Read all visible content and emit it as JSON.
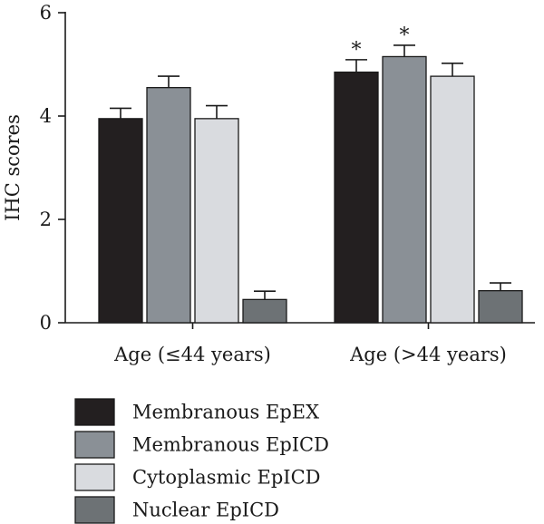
{
  "chart_data": {
    "type": "bar",
    "title": "",
    "xlabel": "",
    "ylabel": "IHC scores",
    "ylim": [
      0,
      6
    ],
    "yticks": [
      0,
      2,
      4,
      6
    ],
    "categories": [
      "Age (≤44 years)",
      "Age (>44 years)"
    ],
    "series": [
      {
        "name": "Membranous EpEX",
        "color": "#231f20",
        "values": [
          3.95,
          4.85
        ],
        "errors": [
          0.2,
          0.24
        ],
        "annotations": [
          "",
          "*"
        ]
      },
      {
        "name": "Membranous EpICD",
        "color": "#8a9096",
        "values": [
          4.55,
          5.15
        ],
        "errors": [
          0.22,
          0.22
        ],
        "annotations": [
          "",
          "*"
        ]
      },
      {
        "name": "Cytoplasmic EpICD",
        "color": "#d9dbdf",
        "values": [
          3.95,
          4.77
        ],
        "errors": [
          0.25,
          0.25
        ],
        "annotations": [
          "",
          ""
        ]
      },
      {
        "name": "Nuclear EpICD",
        "color": "#6d7275",
        "values": [
          0.45,
          0.62
        ],
        "errors": [
          0.16,
          0.15
        ],
        "annotations": [
          "",
          ""
        ]
      }
    ],
    "legend_position": "bottom-left",
    "grid": false
  }
}
